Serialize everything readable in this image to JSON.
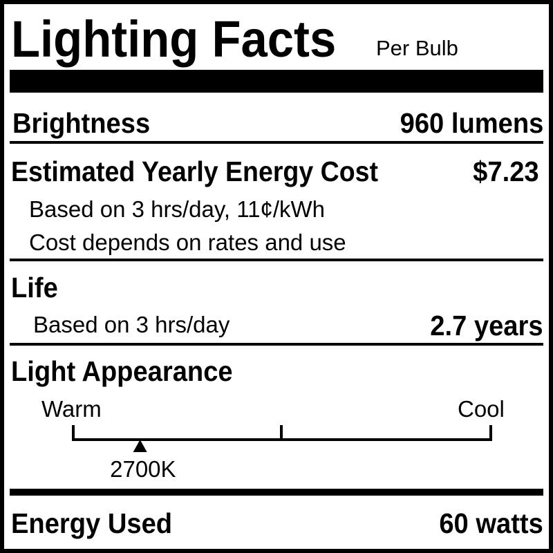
{
  "header": {
    "title": "Lighting Facts",
    "subtitle": "Per Bulb"
  },
  "brightness": {
    "label": "Brightness",
    "value": "960 lumens"
  },
  "cost": {
    "label": "Estimated Yearly Energy Cost",
    "value": "$7.23",
    "note1": "Based on 3 hrs/day, 11¢/kWh",
    "note2": "Cost depends on rates and use"
  },
  "life": {
    "label": "Life",
    "note": "Based on 3 hrs/day",
    "value": "2.7 years"
  },
  "appearance": {
    "label": "Light Appearance",
    "warm_label": "Warm",
    "cool_label": "Cool",
    "marker_label": "2700K",
    "marker_fraction": 0.16
  },
  "energy": {
    "label": "Energy Used",
    "value": "60 watts"
  }
}
